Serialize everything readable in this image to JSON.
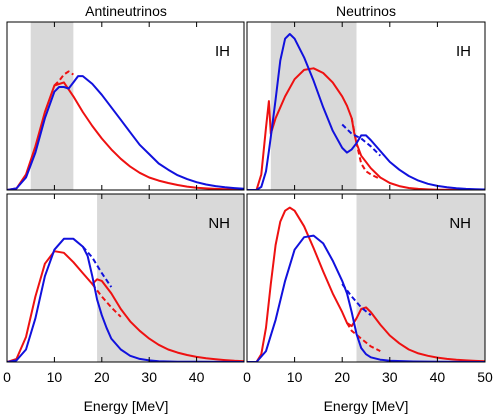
{
  "figure": {
    "column_titles": [
      "Antineutrinos",
      "Neutrinos"
    ],
    "xlabel": "Energy [MeV]",
    "colors": {
      "red": "#ee1111",
      "blue": "#1111dd",
      "shade": "#d9d9d9",
      "axis": "#000000"
    }
  },
  "chart_data": [
    {
      "type": "line",
      "title": "Antineutrinos",
      "panel_label": "IH",
      "ylabel": "",
      "xlim": [
        0,
        50
      ],
      "ylim": [
        0,
        1
      ],
      "xticks": [
        0,
        10,
        20,
        30,
        40
      ],
      "show_xticklabels": false,
      "shaded_band": [
        5,
        14
      ],
      "series": [
        {
          "color": "red",
          "style": "solid",
          "x": [
            0,
            2,
            4,
            6,
            8,
            10,
            12,
            14,
            16,
            18,
            20,
            22,
            24,
            26,
            28,
            30,
            32,
            34,
            36,
            38,
            40,
            42,
            44,
            46,
            48,
            50
          ],
          "y": [
            0,
            0.01,
            0.1,
            0.28,
            0.5,
            0.67,
            0.69,
            0.6,
            0.5,
            0.41,
            0.33,
            0.26,
            0.2,
            0.15,
            0.11,
            0.08,
            0.06,
            0.045,
            0.032,
            0.022,
            0.015,
            0.01,
            0.007,
            0.005,
            0.003,
            0.002
          ]
        },
        {
          "color": "red",
          "style": "dashed",
          "x": [
            10,
            11,
            12,
            13,
            14
          ],
          "y": [
            0.67,
            0.7,
            0.74,
            0.76,
            0.74
          ]
        },
        {
          "color": "blue",
          "style": "solid",
          "x": [
            0,
            2,
            4,
            6,
            8,
            10,
            11,
            12,
            13,
            14,
            15,
            16,
            18,
            20,
            22,
            24,
            26,
            28,
            30,
            32,
            34,
            36,
            38,
            40,
            42,
            44,
            46,
            48,
            50
          ],
          "y": [
            0,
            0.01,
            0.08,
            0.24,
            0.46,
            0.63,
            0.66,
            0.66,
            0.65,
            0.69,
            0.73,
            0.73,
            0.68,
            0.61,
            0.53,
            0.45,
            0.37,
            0.29,
            0.23,
            0.17,
            0.13,
            0.095,
            0.07,
            0.05,
            0.035,
            0.025,
            0.017,
            0.012,
            0.008
          ]
        }
      ]
    },
    {
      "type": "line",
      "title": "Neutrinos",
      "panel_label": "IH",
      "ylabel": "",
      "xlim": [
        0,
        50
      ],
      "ylim": [
        0,
        1
      ],
      "xticks": [
        0,
        10,
        20,
        30,
        40,
        50
      ],
      "show_xticklabels": false,
      "shaded_band": [
        5,
        23
      ],
      "series": [
        {
          "color": "red",
          "style": "solid",
          "x": [
            0,
            2,
            3,
            4,
            4.6,
            5,
            6,
            8,
            10,
            12,
            14,
            16,
            18,
            20,
            21,
            22,
            22.5,
            23,
            24,
            26,
            28,
            30,
            32,
            34,
            36,
            38,
            40,
            42,
            44,
            46,
            48,
            50
          ],
          "y": [
            0,
            0,
            0.1,
            0.4,
            0.57,
            0.36,
            0.46,
            0.6,
            0.71,
            0.77,
            0.78,
            0.75,
            0.69,
            0.6,
            0.54,
            0.46,
            0.37,
            0.3,
            0.22,
            0.14,
            0.08,
            0.045,
            0.025,
            0.013,
            0.007,
            0.004,
            0.002,
            0.001,
            0.001,
            0,
            0,
            0
          ]
        },
        {
          "color": "red",
          "style": "dashed",
          "x": [
            22,
            23,
            24,
            25,
            26,
            28
          ],
          "y": [
            0.46,
            0.3,
            0.17,
            0.12,
            0.1,
            0.07
          ]
        },
        {
          "color": "blue",
          "style": "solid",
          "x": [
            0,
            2,
            3,
            4,
            4.6,
            5,
            6,
            7,
            8,
            9,
            10,
            12,
            14,
            16,
            18,
            20,
            21,
            22,
            23,
            24,
            25,
            26,
            28,
            30,
            32,
            34,
            36,
            38,
            40,
            42,
            44,
            46,
            48,
            50
          ],
          "y": [
            0,
            0,
            0.02,
            0.12,
            0.25,
            0.34,
            0.58,
            0.83,
            0.97,
            1,
            0.97,
            0.85,
            0.7,
            0.53,
            0.38,
            0.27,
            0.24,
            0.26,
            0.3,
            0.35,
            0.35,
            0.32,
            0.25,
            0.18,
            0.13,
            0.09,
            0.06,
            0.04,
            0.026,
            0.017,
            0.011,
            0.007,
            0.005,
            0.003
          ]
        },
        {
          "color": "blue",
          "style": "dashed",
          "x": [
            20,
            22,
            24,
            26,
            28
          ],
          "y": [
            0.42,
            0.36,
            0.33,
            0.28,
            0.22
          ]
        }
      ]
    },
    {
      "type": "line",
      "title": "",
      "panel_label": "NH",
      "ylabel": "",
      "xlim": [
        0,
        50
      ],
      "ylim": [
        0,
        1
      ],
      "xticks": [
        0,
        10,
        20,
        30,
        40
      ],
      "show_xticklabels": true,
      "shaded_band": [
        19,
        50
      ],
      "series": [
        {
          "color": "red",
          "style": "solid",
          "x": [
            0,
            2,
            4,
            6,
            8,
            10,
            12,
            14,
            16,
            18,
            19,
            20,
            22,
            24,
            26,
            28,
            30,
            32,
            34,
            36,
            38,
            40,
            42,
            44,
            46,
            48,
            50
          ],
          "y": [
            0,
            0.02,
            0.16,
            0.42,
            0.63,
            0.71,
            0.7,
            0.64,
            0.57,
            0.5,
            0.53,
            0.52,
            0.44,
            0.34,
            0.26,
            0.2,
            0.15,
            0.11,
            0.08,
            0.06,
            0.045,
            0.033,
            0.024,
            0.017,
            0.012,
            0.008,
            0.005
          ]
        },
        {
          "color": "red",
          "style": "dashed",
          "x": [
            18,
            20,
            22,
            24
          ],
          "y": [
            0.5,
            0.42,
            0.35,
            0.29
          ]
        },
        {
          "color": "blue",
          "style": "solid",
          "x": [
            0,
            2,
            4,
            6,
            8,
            10,
            12,
            14,
            16,
            17,
            18,
            19,
            20,
            21,
            22,
            24,
            26,
            28,
            30,
            32,
            34,
            36,
            40,
            50
          ],
          "y": [
            0,
            0.01,
            0.08,
            0.28,
            0.55,
            0.72,
            0.79,
            0.79,
            0.74,
            0.68,
            0.55,
            0.4,
            0.3,
            0.22,
            0.15,
            0.08,
            0.04,
            0.02,
            0.01,
            0.005,
            0.003,
            0.002,
            0.001,
            0
          ]
        },
        {
          "color": "blue",
          "style": "dashed",
          "x": [
            16,
            18,
            20,
            22
          ],
          "y": [
            0.74,
            0.67,
            0.57,
            0.48
          ]
        }
      ]
    },
    {
      "type": "line",
      "title": "",
      "panel_label": "NH",
      "ylabel": "",
      "xlim": [
        0,
        50
      ],
      "ylim": [
        0,
        1
      ],
      "xticks": [
        0,
        10,
        20,
        30,
        40,
        50
      ],
      "show_xticklabels": true,
      "shaded_band": [
        23,
        50
      ],
      "series": [
        {
          "color": "red",
          "style": "solid",
          "x": [
            0,
            2,
            3,
            4,
            5,
            6,
            7,
            8,
            9,
            10,
            12,
            14,
            16,
            18,
            20,
            21,
            22,
            23,
            24,
            25,
            26,
            28,
            30,
            32,
            34,
            36,
            38,
            40,
            42,
            44,
            46,
            48,
            50
          ],
          "y": [
            0,
            0,
            0.05,
            0.22,
            0.5,
            0.75,
            0.9,
            0.97,
            0.99,
            0.97,
            0.87,
            0.73,
            0.58,
            0.44,
            0.32,
            0.25,
            0.23,
            0.28,
            0.34,
            0.35,
            0.32,
            0.24,
            0.17,
            0.12,
            0.08,
            0.055,
            0.04,
            0.028,
            0.02,
            0.014,
            0.01,
            0.007,
            0.005
          ]
        },
        {
          "color": "red",
          "style": "dashed",
          "x": [
            21,
            22,
            24,
            26,
            28
          ],
          "y": [
            0.25,
            0.2,
            0.15,
            0.1,
            0.07
          ]
        },
        {
          "color": "blue",
          "style": "solid",
          "x": [
            0,
            2,
            4,
            6,
            8,
            10,
            12,
            14,
            16,
            18,
            20,
            21,
            22,
            23,
            24,
            25,
            26,
            28,
            30,
            35,
            40,
            50
          ],
          "y": [
            0,
            0,
            0.07,
            0.27,
            0.52,
            0.72,
            0.8,
            0.81,
            0.76,
            0.65,
            0.52,
            0.44,
            0.32,
            0.18,
            0.09,
            0.05,
            0.03,
            0.015,
            0.008,
            0.003,
            0.001,
            0
          ]
        },
        {
          "color": "blue",
          "style": "dashed",
          "x": [
            20,
            22,
            24,
            26
          ],
          "y": [
            0.5,
            0.42,
            0.35,
            0.3
          ]
        }
      ]
    }
  ]
}
